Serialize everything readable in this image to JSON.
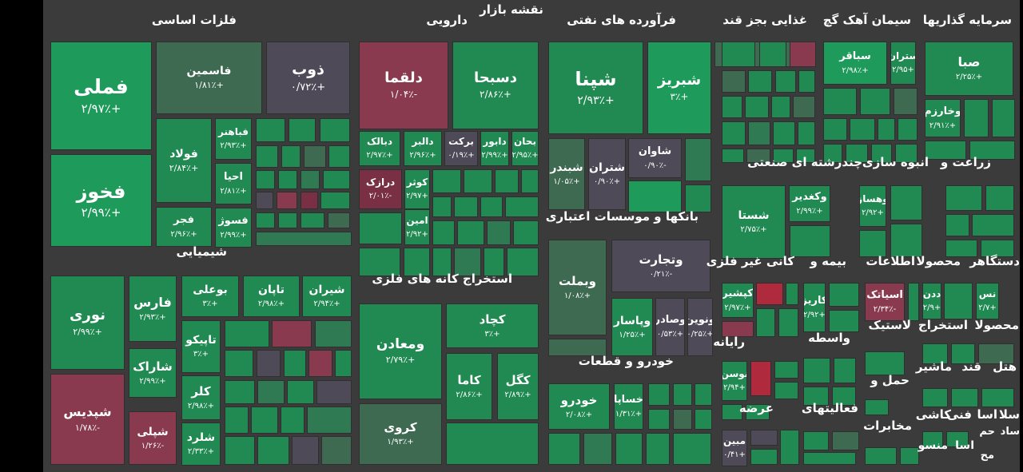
{
  "title": "نقشه بازار",
  "colors": {
    "strong_green": "#1e9a5a",
    "green": "#208a52",
    "mid_green": "#2f7a52",
    "dull_green": "#3f6a52",
    "gray_purple": "#4e4a58",
    "red": "#8a3a4e",
    "dark_red": "#7a3044",
    "bright_red": "#b02a3e",
    "background": "#3b3b3b"
  },
  "sectors": [
    "فلزات اساسی",
    "دارویی",
    "فرآورده های نفتی",
    "غذایی بجز قند",
    "سیمان آهک گچ",
    "سرمایه گذاریها",
    "شیمیایی",
    "استخراج کانه های فلزی",
    "بانکها و موسسات اعتباری",
    "چندرشته ای صنعتی",
    "انبوه سازی",
    "زراعت و",
    "خودرو و قطعات",
    "کانی غیر فلزی",
    "بیمه و",
    "اطلاعات",
    "دستگاهر",
    "محصولا",
    "رایانه",
    "واسطه",
    "لاستیک",
    "استخراج",
    "محصولا",
    "عرضه",
    "حمل و",
    "ماشیر",
    "قند",
    "هتل",
    "فعالیتهای",
    "مخابرات",
    "کاشی",
    "فنی",
    "اسا",
    "سلا",
    "ساد",
    "حم",
    "منسو",
    "اسا",
    "مح"
  ],
  "chart_data": {
    "type": "heatmap",
    "title": "نقشه بازار",
    "subtype": "treemap",
    "items": [
      {
        "symbol": "فملی",
        "change": "+۲/۹۷٪"
      },
      {
        "symbol": "فخوز",
        "change": "+۲/۹۹٪"
      },
      {
        "symbol": "فاسمین",
        "change": "+۱/۸۱٪"
      },
      {
        "symbol": "ذوب",
        "change": "+۰/۷۲٪"
      },
      {
        "symbol": "فولاد",
        "change": "+۲/۸۴٪"
      },
      {
        "symbol": "فباهنر",
        "change": "+۲/۹۳٪"
      },
      {
        "symbol": "احیا",
        "change": "+۲/۸۱٪"
      },
      {
        "symbol": "فجر",
        "change": "+۲/۹۶٪"
      },
      {
        "symbol": "فسوژ",
        "change": "+۲/۹۹٪"
      },
      {
        "symbol": "دلقما",
        "change": "-۱/۰۴٪"
      },
      {
        "symbol": "دسبحا",
        "change": "+۲/۸۶٪"
      },
      {
        "symbol": "دبالک",
        "change": "+۲/۹۷٪"
      },
      {
        "symbol": "دالبر",
        "change": "+۲/۹۶٪"
      },
      {
        "symbol": "برکت",
        "change": "+۰/۱۹٪"
      },
      {
        "symbol": "دابور",
        "change": "+۲/۹۹٪"
      },
      {
        "symbol": "بحان",
        "change": "+۲/۹۵٪"
      },
      {
        "symbol": "درازک",
        "change": "-۲/۰۱٪"
      },
      {
        "symbol": "کوثر",
        "change": "+۲/۹۷"
      },
      {
        "symbol": "امین",
        "change": "+۲/۹۲"
      },
      {
        "symbol": "شپنا",
        "change": "+۲/۹۳٪"
      },
      {
        "symbol": "شبریز",
        "change": "+۳٪"
      },
      {
        "symbol": "شبندر",
        "change": "+۱/۰۵٪"
      },
      {
        "symbol": "شتران",
        "change": "+۰/۹۰٪"
      },
      {
        "symbol": "شاوان",
        "change": "-۰/۹۰٪"
      },
      {
        "symbol": "سباقر",
        "change": "+۲/۹۸٪"
      },
      {
        "symbol": "ستران",
        "change": "+۲/۹۵"
      },
      {
        "symbol": "صبا",
        "change": "+۲/۲۵٪"
      },
      {
        "symbol": "وخارزم",
        "change": "+۲/۹۱٪"
      },
      {
        "symbol": "نوری",
        "change": "+۲/۹۹٪"
      },
      {
        "symbol": "فارس",
        "change": "+۲/۹۳٪"
      },
      {
        "symbol": "بوعلی",
        "change": "+۳٪"
      },
      {
        "symbol": "تاپان",
        "change": "+۲/۹۸٪"
      },
      {
        "symbol": "شیران",
        "change": "+۲/۹۴٪"
      },
      {
        "symbol": "تاپیکو",
        "change": "+۳٪"
      },
      {
        "symbol": "شاراک",
        "change": "+۲/۹۹٪"
      },
      {
        "symbol": "کلر",
        "change": "+۲/۹۸٪"
      },
      {
        "symbol": "شپدیس",
        "change": "-۱/۷۸٪"
      },
      {
        "symbol": "شپلی",
        "change": "-۱/۲۶٪"
      },
      {
        "symbol": "شلرد",
        "change": "+۲/۳۳٪"
      },
      {
        "symbol": "ومعادن",
        "change": "+۲/۷۹٪"
      },
      {
        "symbol": "کچاد",
        "change": "+۳٪"
      },
      {
        "symbol": "کاما",
        "change": "+۲/۸۶٪"
      },
      {
        "symbol": "کگل",
        "change": "+۲/۸۹٪"
      },
      {
        "symbol": "کروی",
        "change": "+۱/۹۳٪"
      },
      {
        "symbol": "وبملت",
        "change": "+۱/۰۸٪"
      },
      {
        "symbol": "وتجارت",
        "change": "-۰/۲۱٪"
      },
      {
        "symbol": "وپاسار",
        "change": "+۱/۲۵٪"
      },
      {
        "symbol": "وصادر",
        "change": "+۰/۵۳٪"
      },
      {
        "symbol": "ونوین",
        "change": "+۰/۲۵٪"
      },
      {
        "symbol": "خودرو",
        "change": "+۲/۰۸٪"
      },
      {
        "symbol": "خساپا",
        "change": "+۱/۳۱٪"
      },
      {
        "symbol": "شستا",
        "change": "+۲/۷۵٪"
      },
      {
        "symbol": "وکغدیر",
        "change": "+۲/۹۹٪"
      },
      {
        "symbol": "وهساز",
        "change": "+۲/۹۲"
      },
      {
        "symbol": "کپشیر",
        "change": "+۲/۹۷٪"
      },
      {
        "symbol": "کاریز",
        "change": "+۲/۹۲"
      },
      {
        "symbol": "اسیاتک",
        "change": "-۲/۳۴٪"
      },
      {
        "symbol": "ددن",
        "change": "+۲/۹"
      },
      {
        "symbol": "نس",
        "change": "+۲/۷"
      },
      {
        "symbol": "نوسن",
        "change": "+۲/۹۴"
      },
      {
        "symbol": "مبین",
        "change": "+۰/۴۱"
      }
    ]
  }
}
